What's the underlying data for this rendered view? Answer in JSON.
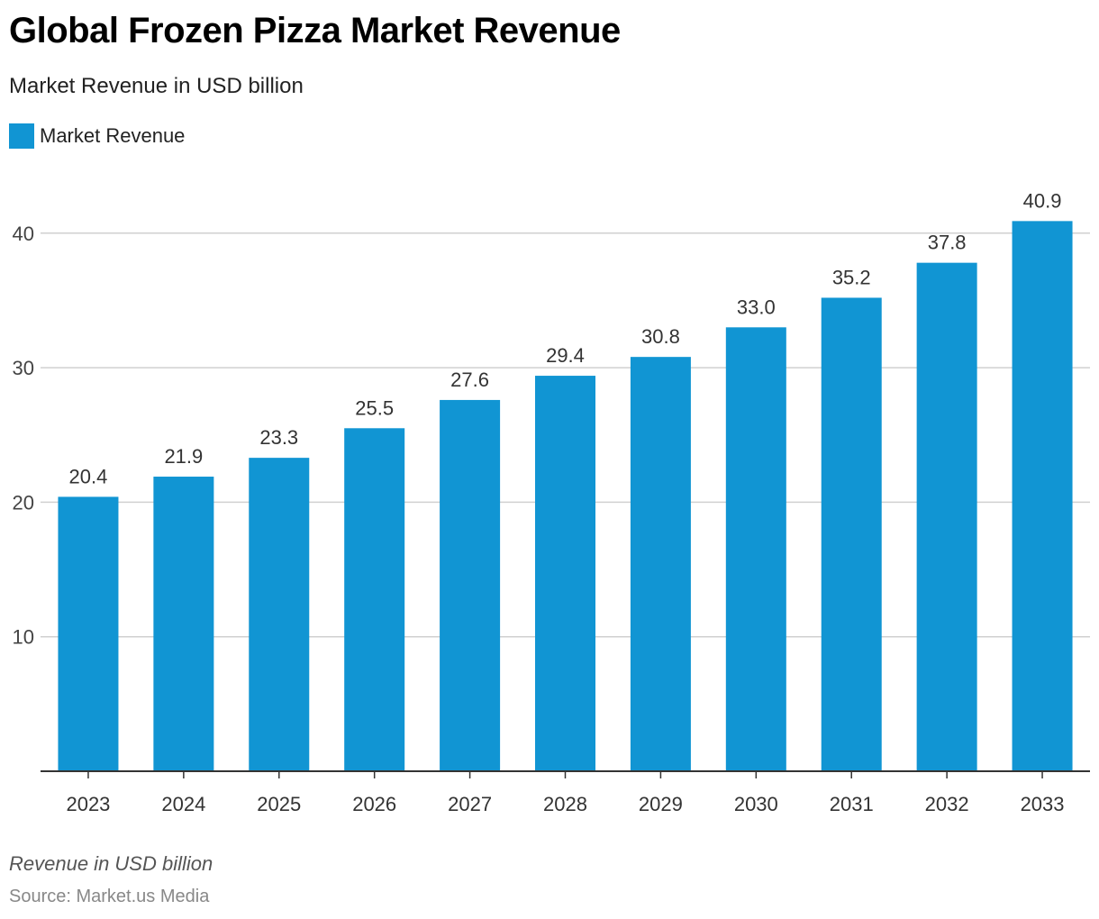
{
  "chart_data": {
    "type": "bar",
    "title": "Global Frozen Pizza Market Revenue",
    "subtitle": "Market Revenue in USD billion",
    "categories": [
      "2023",
      "2024",
      "2025",
      "2026",
      "2027",
      "2028",
      "2029",
      "2030",
      "2031",
      "2032",
      "2033"
    ],
    "series": [
      {
        "name": "Market Revenue",
        "values": [
          20.4,
          21.9,
          23.3,
          25.5,
          27.6,
          29.4,
          30.8,
          33.0,
          35.2,
          37.8,
          40.9
        ],
        "color": "#1195d3"
      }
    ],
    "data_labels": [
      "20.4",
      "21.9",
      "23.3",
      "25.5",
      "27.6",
      "29.4",
      "30.8",
      "33.0",
      "35.2",
      "37.8",
      "40.9"
    ],
    "y_ticks": [
      10,
      20,
      30,
      40
    ],
    "ylim": [
      0,
      40.9
    ],
    "grid": true,
    "legend": "top-left",
    "xlabel": "",
    "ylabel": ""
  },
  "footer": {
    "note": "Revenue in USD billion",
    "source": "Source: Market.us Media"
  }
}
